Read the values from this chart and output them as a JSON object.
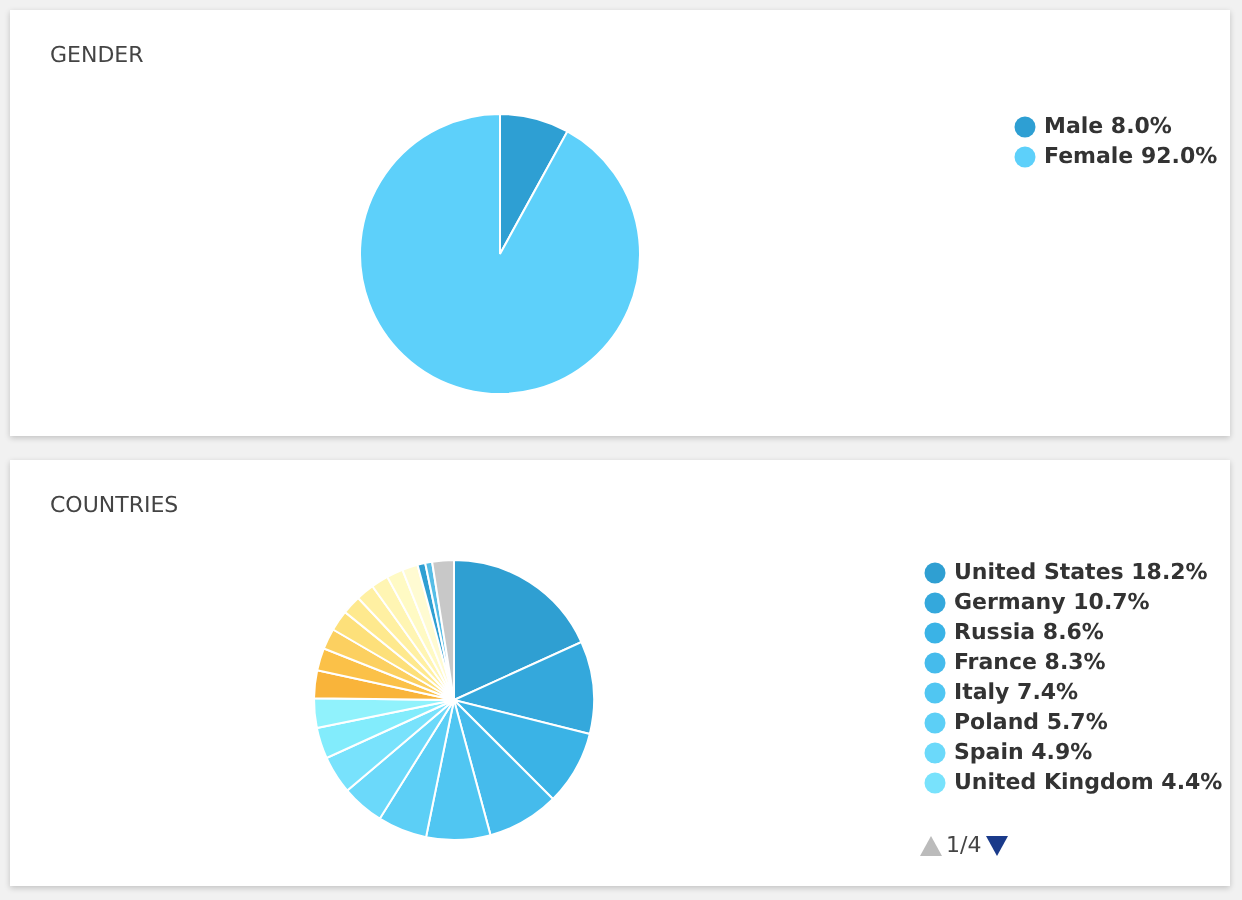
{
  "chart_data": [
    {
      "type": "pie",
      "title": "GENDER",
      "categories": [
        "Male",
        "Female"
      ],
      "values": [
        8.0,
        92.0
      ],
      "value_labels": [
        "8.0%",
        "92.0%"
      ],
      "colors": [
        "#2e9fd3",
        "#5dd0fa"
      ],
      "legend": "right"
    },
    {
      "type": "pie",
      "title": "COUNTRIES",
      "categories": [
        "United States",
        "Germany",
        "Russia",
        "France",
        "Italy",
        "Poland",
        "Spain",
        "United Kingdom",
        null,
        null,
        null,
        null,
        null,
        null,
        null,
        null,
        null,
        null,
        null,
        null,
        null,
        null
      ],
      "values": [
        18.2,
        10.7,
        8.6,
        8.3,
        7.4,
        5.7,
        4.9,
        4.4,
        3.6,
        3.4,
        3.2,
        2.6,
        2.4,
        2.4,
        2.2,
        2.1,
        2.0,
        1.9,
        1.8,
        0.9,
        0.8,
        2.5
      ],
      "value_labels": [
        "18.2%",
        "10.7%",
        "8.6%",
        "8.3%",
        "7.4%",
        "5.7%",
        "4.9%",
        "4.4%",
        null,
        null,
        null,
        null,
        null,
        null,
        null,
        null,
        null,
        null,
        null,
        null,
        null,
        null
      ],
      "colors": [
        "#2f9fd2",
        "#34a8dc",
        "#3ab3e6",
        "#45bbec",
        "#50c6f2",
        "#5ccff6",
        "#6bd9fa",
        "#78e2fc",
        "#82ecfc",
        "#90f2fc",
        "#f9b43a",
        "#fbc148",
        "#fcd060",
        "#fde07a",
        "#fee98e",
        "#fff0a2",
        "#fff5b3",
        "#fffac4",
        "#fffbd2",
        "#2f9fd2",
        "#56bde6",
        "#c8c8c8"
      ],
      "legend": "right",
      "annotations": [
        "1/4"
      ]
    }
  ]
}
